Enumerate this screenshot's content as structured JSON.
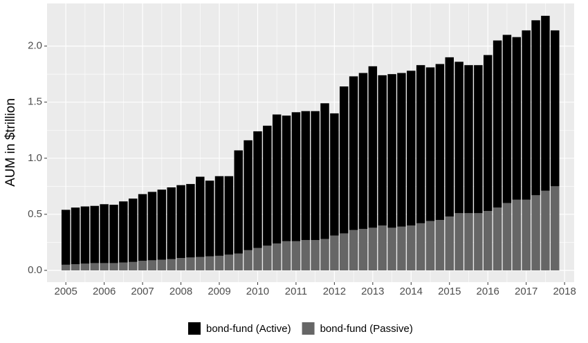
{
  "chart_data": {
    "type": "stacked-bar",
    "y_label": "AUM in $trillion",
    "x": [
      2005,
      2005.25,
      2005.5,
      2005.75,
      2006,
      2006.25,
      2006.5,
      2006.75,
      2007,
      2007.25,
      2007.5,
      2007.75,
      2008,
      2008.25,
      2008.5,
      2008.75,
      2009,
      2009.25,
      2009.5,
      2009.75,
      2010,
      2010.25,
      2010.5,
      2010.75,
      2011,
      2011.25,
      2011.5,
      2011.75,
      2012,
      2012.25,
      2012.5,
      2012.75,
      2013,
      2013.25,
      2013.5,
      2013.75,
      2014,
      2014.25,
      2014.5,
      2014.75,
      2015,
      2015.25,
      2015.5,
      2015.75,
      2016,
      2016.25,
      2016.5,
      2016.75,
      2017,
      2017.25,
      2017.5,
      2017.75
    ],
    "series": [
      {
        "name": "bond-fund (Passive)",
        "color": "#666666",
        "values": [
          0.05,
          0.055,
          0.06,
          0.065,
          0.065,
          0.065,
          0.07,
          0.075,
          0.085,
          0.09,
          0.095,
          0.1,
          0.11,
          0.115,
          0.12,
          0.125,
          0.13,
          0.14,
          0.15,
          0.18,
          0.2,
          0.22,
          0.24,
          0.26,
          0.26,
          0.27,
          0.27,
          0.28,
          0.31,
          0.33,
          0.36,
          0.37,
          0.38,
          0.4,
          0.38,
          0.39,
          0.4,
          0.42,
          0.44,
          0.45,
          0.48,
          0.51,
          0.51,
          0.51,
          0.53,
          0.56,
          0.6,
          0.63,
          0.63,
          0.67,
          0.71,
          0.75
        ]
      },
      {
        "name": "bond-fund (Active)",
        "color": "#000000",
        "values": [
          0.49,
          0.505,
          0.51,
          0.51,
          0.525,
          0.52,
          0.545,
          0.565,
          0.595,
          0.61,
          0.625,
          0.64,
          0.65,
          0.655,
          0.715,
          0.675,
          0.71,
          0.7,
          0.92,
          0.98,
          1.04,
          1.07,
          1.15,
          1.12,
          1.15,
          1.15,
          1.15,
          1.21,
          1.09,
          1.31,
          1.37,
          1.39,
          1.44,
          1.34,
          1.37,
          1.37,
          1.38,
          1.41,
          1.37,
          1.39,
          1.42,
          1.35,
          1.32,
          1.32,
          1.39,
          1.49,
          1.5,
          1.45,
          1.51,
          1.56,
          1.56,
          1.39
        ]
      }
    ],
    "legend_order": [
      1,
      0
    ],
    "legend_position": "bottom",
    "xlim": [
      2004.51,
      2018.25
    ],
    "xticks": [
      2005,
      2006,
      2007,
      2008,
      2009,
      2010,
      2011,
      2012,
      2013,
      2014,
      2015,
      2016,
      2017,
      2018
    ],
    "ylim": [
      -0.105,
      2.38
    ],
    "yticks": [
      {
        "value": 0,
        "label": "0.0"
      },
      {
        "value": 0.5,
        "label": "0.5"
      },
      {
        "value": 1,
        "label": "1.0"
      },
      {
        "value": 1.5,
        "label": "1.5"
      },
      {
        "value": 2,
        "label": "2.0"
      }
    ],
    "grid": true,
    "bar_width": 0.225
  }
}
